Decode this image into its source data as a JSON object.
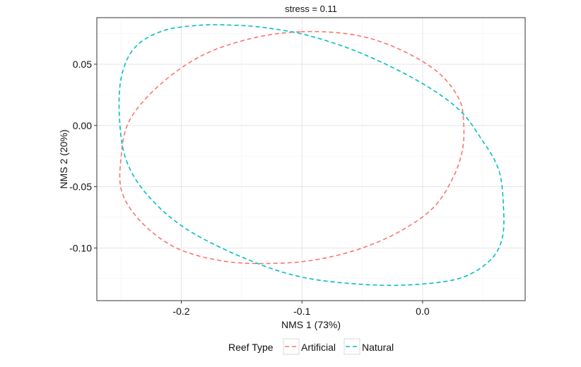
{
  "chart_data": {
    "type": "line",
    "title": "stress = 0.11",
    "xlabel": "NMS 1 (73%)",
    "ylabel": "NMS 2 (20%)",
    "xlim": [
      -0.27,
      0.085
    ],
    "ylim": [
      -0.143,
      0.088
    ],
    "x_ticks": [
      -0.2,
      -0.1,
      0.0
    ],
    "x_tick_labels": [
      "-0.2",
      "-0.1",
      "0.0"
    ],
    "y_ticks": [
      0.05,
      0.0,
      -0.05,
      -0.1
    ],
    "y_tick_labels": [
      "0.05",
      "0.00",
      "-0.05",
      "-0.10"
    ],
    "grid": true,
    "line_style": "dashed",
    "legend": {
      "title": "Reef Type",
      "position": "bottom"
    },
    "series": [
      {
        "name": "Artificial",
        "color": "#F8766D",
        "x": [
          -0.101,
          -0.057,
          -0.021,
          0.012,
          0.03,
          0.034,
          0.033,
          0.025,
          0.009,
          -0.018,
          -0.05,
          -0.085,
          -0.12,
          -0.163,
          -0.203,
          -0.232,
          -0.249,
          -0.25,
          -0.243,
          -0.218,
          -0.183,
          -0.142,
          -0.101
        ],
        "y": [
          0.0765,
          0.074,
          0.063,
          0.044,
          0.022,
          0.002,
          -0.02,
          -0.043,
          -0.067,
          -0.086,
          -0.1,
          -0.109,
          -0.1125,
          -0.111,
          -0.1005,
          -0.08,
          -0.055,
          -0.027,
          0.004,
          0.033,
          0.057,
          0.071,
          0.0765
        ]
      },
      {
        "name": "Natural",
        "color": "#00BFC4",
        "x": [
          -0.156,
          -0.132,
          -0.095,
          -0.051,
          -0.005,
          0.029,
          0.048,
          0.063,
          0.067,
          0.066,
          0.056,
          0.033,
          -0.001,
          -0.045,
          -0.099,
          -0.146,
          -0.195,
          -0.227,
          -0.245,
          -0.251,
          -0.25,
          -0.239,
          -0.216,
          -0.185,
          -0.156
        ],
        "y": [
          0.0818,
          0.08,
          0.0735,
          0.059,
          0.037,
          0.014,
          -0.01,
          -0.036,
          -0.066,
          -0.092,
          -0.11,
          -0.124,
          -0.1295,
          -0.13,
          -0.124,
          -0.109,
          -0.085,
          -0.058,
          -0.03,
          0.002,
          0.038,
          0.063,
          0.077,
          0.0818,
          0.0818
        ]
      }
    ]
  }
}
